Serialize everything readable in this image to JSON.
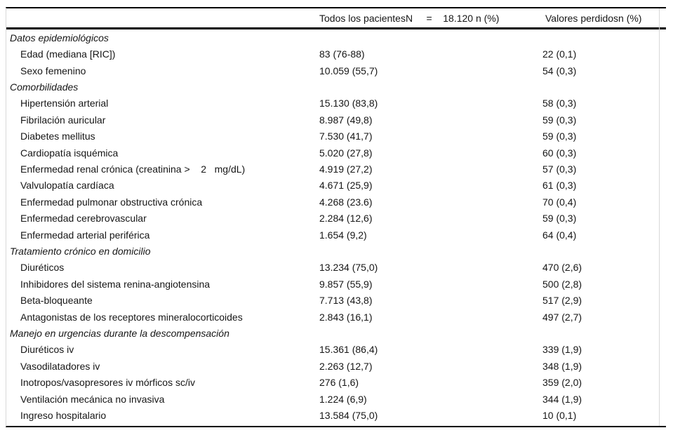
{
  "table": {
    "header": {
      "label_column": "",
      "patients": "Todos los pacientesN     =    18.120 n (%)",
      "missing": "Valores perdidosn (%)"
    },
    "rows": [
      {
        "section": true,
        "label": "Datos epidemiológicos"
      },
      {
        "label": "Edad (mediana [RIC])",
        "value": "83 (76-88)",
        "missing": "22 (0,1)"
      },
      {
        "label": "Sexo femenino",
        "value": "10.059 (55,7)",
        "missing": "54 (0,3)"
      },
      {
        "section": true,
        "label": "Comorbilidades"
      },
      {
        "label": "Hipertensión arterial",
        "value": "15.130 (83,8)",
        "missing": "58 (0,3)"
      },
      {
        "label": "Fibrilación auricular",
        "value": "8.987 (49,8)",
        "missing": "59 (0,3)"
      },
      {
        "label": "Diabetes mellitus",
        "value": "7.530 (41,7)",
        "missing": "59 (0,3)"
      },
      {
        "label": "Cardiopatía isquémica",
        "value": "5.020 (27,8)",
        "missing": "60 (0,3)"
      },
      {
        "label": "Enfermedad renal crónica (creatinina >    2   mg/dL)",
        "value": "4.919 (27,2)",
        "missing": "57 (0,3)"
      },
      {
        "label": "Valvulopatía cardíaca",
        "value": "4.671 (25,9)",
        "missing": "61 (0,3)"
      },
      {
        "label": "Enfermedad pulmonar obstructiva crónica",
        "value": "4.268 (23.6)",
        "missing": "70 (0,4)"
      },
      {
        "label": "Enfermedad cerebrovascular",
        "value": "2.284 (12,6)",
        "missing": "59 (0,3)"
      },
      {
        "label": "Enfermedad arterial periférica",
        "value": "1.654 (9,2)",
        "missing": "64 (0,4)"
      },
      {
        "section": true,
        "label": "Tratamiento crónico en domicilio"
      },
      {
        "label": "Diuréticos",
        "value": "13.234 (75,0)",
        "missing": "470 (2,6)"
      },
      {
        "label": "Inhibidores del sistema renina-angiotensina",
        "value": "9.857 (55,9)",
        "missing": "500 (2,8)"
      },
      {
        "label": "Beta-bloqueante",
        "value": "7.713 (43,8)",
        "missing": "517 (2,9)"
      },
      {
        "label": "Antagonistas de los receptores mineralocorticoides",
        "value": "2.843 (16,1)",
        "missing": "497 (2,7)"
      },
      {
        "section": true,
        "label": "Manejo en urgencias durante la descompensación"
      },
      {
        "label": "Diuréticos iv",
        "value": "15.361 (86,4)",
        "missing": "339 (1,9)"
      },
      {
        "label": "Vasodilatadores iv",
        "value": "2.263 (12,7)",
        "missing": "348 (1,9)"
      },
      {
        "label": "Inotropos/vasopresores iv mórficos sc/iv",
        "value": "276 (1,6)",
        "missing": "359 (2,0)"
      },
      {
        "label": "Ventilación mecánica no invasiva",
        "value": "1.224 (6,9)",
        "missing": "344 (1,9)"
      },
      {
        "label": "Ingreso hospitalario",
        "value": "13.584 (75,0)",
        "missing": "10 (0,1)"
      }
    ],
    "colors": {
      "horizontal_rule": "#000000",
      "side_border": "#d8d8d8",
      "text": "#161616",
      "background": "#ffffff"
    }
  }
}
